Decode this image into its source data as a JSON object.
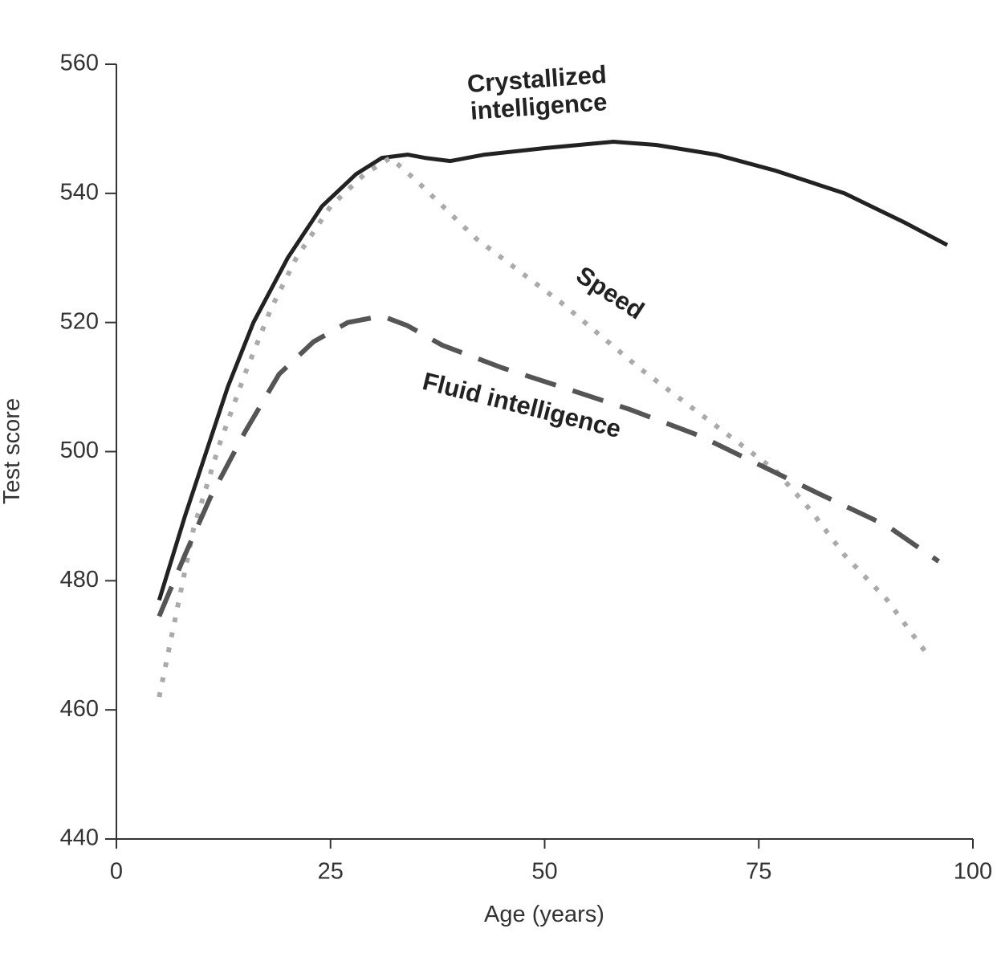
{
  "chart_data": {
    "type": "line",
    "xlabel": "Age (years)",
    "ylabel": "Test score",
    "xlim": [
      0,
      100
    ],
    "xticks": [
      0,
      25,
      50,
      75,
      100
    ],
    "ylim": [
      440,
      560
    ],
    "yticks": [
      440,
      460,
      480,
      500,
      520,
      540,
      560
    ],
    "series": [
      {
        "name": "Crystallized intelligence",
        "color": "#222222",
        "style": "solid",
        "x": [
          5,
          8,
          10,
          13,
          16,
          20,
          24,
          28,
          31,
          34,
          36,
          39,
          43,
          50,
          58,
          63,
          70,
          77,
          85,
          92,
          97
        ],
        "values": [
          477,
          490,
          498,
          510,
          520,
          530,
          538,
          543,
          545.5,
          546,
          545.5,
          545,
          546,
          547,
          548,
          547.5,
          546,
          543.5,
          540,
          535.5,
          532
        ]
      },
      {
        "name": "Speed",
        "color": "#aaaaaa",
        "style": "dotted",
        "x": [
          5,
          7,
          9,
          12,
          15,
          18,
          21,
          25,
          29,
          32,
          35,
          42,
          52,
          61,
          67,
          72,
          77,
          81,
          85,
          90,
          95
        ],
        "values": [
          462,
          475,
          488,
          501,
          512,
          522,
          530,
          538,
          543,
          545.5,
          542,
          533,
          523,
          513,
          507,
          502,
          497,
          491,
          484,
          477,
          468
        ]
      },
      {
        "name": "Fluid intelligence",
        "color": "#555555",
        "style": "dashed",
        "x": [
          5,
          8,
          11,
          15,
          19,
          23,
          27,
          31,
          34,
          38,
          45,
          52,
          60,
          68,
          75,
          82,
          90,
          96
        ],
        "values": [
          474.5,
          484,
          493,
          503,
          512,
          517,
          520,
          521,
          519.5,
          516.5,
          513,
          510,
          506.5,
          502.5,
          498,
          493.5,
          488.5,
          483
        ]
      }
    ]
  }
}
